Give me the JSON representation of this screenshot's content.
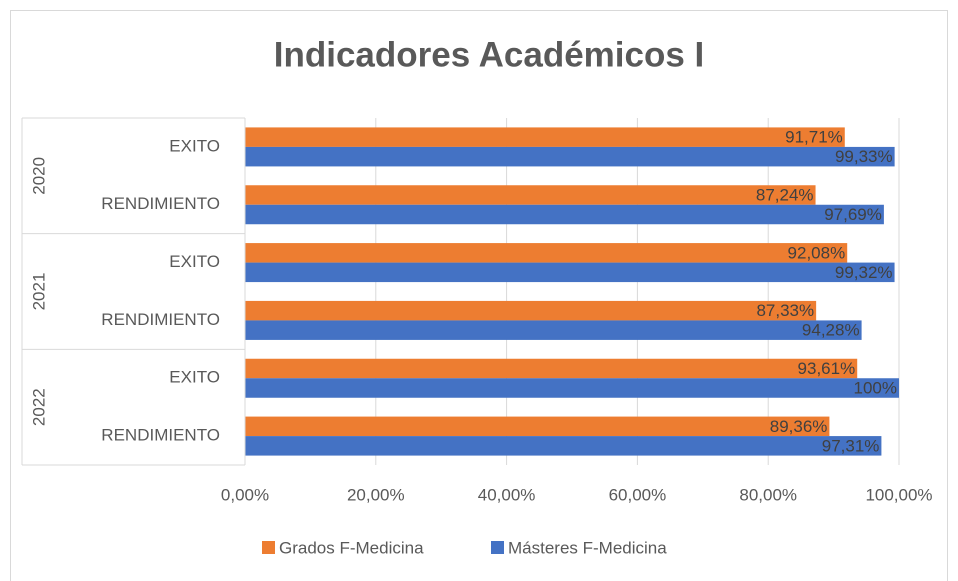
{
  "chart_data": {
    "type": "bar",
    "orientation": "horizontal",
    "title": "Indicadores Académicos I",
    "groups": [
      "2020",
      "2021",
      "2022"
    ],
    "categories": [
      "EXITO",
      "RENDIMIENTO",
      "EXITO",
      "RENDIMIENTO",
      "EXITO",
      "RENDIMIENTO"
    ],
    "series": [
      {
        "name": "Grados F-Medicina",
        "color": "#ED7D31",
        "values": [
          91.71,
          87.24,
          92.08,
          87.33,
          93.61,
          89.36
        ],
        "value_labels": [
          "91,71%",
          "87,24%",
          "92,08%",
          "87,33%",
          "93,61%",
          "89,36%"
        ]
      },
      {
        "name": "Másteres F-Medicina",
        "color": "#4472C4",
        "values": [
          99.33,
          97.69,
          99.32,
          94.28,
          100,
          97.31
        ],
        "value_labels": [
          "99,33%",
          "97,69%",
          "99,32%",
          "94,28%",
          "100%",
          "97,31%"
        ]
      }
    ],
    "xlim": [
      0,
      100
    ],
    "xticks": [
      {
        "value": 0,
        "label": "0,00%"
      },
      {
        "value": 20,
        "label": "20,00%"
      },
      {
        "value": 40,
        "label": "40,00%"
      },
      {
        "value": 60,
        "label": "60,00%"
      },
      {
        "value": 80,
        "label": "80,00%"
      },
      {
        "value": 100,
        "label": "100,00%"
      }
    ],
    "grid": true,
    "legend": "bottom"
  }
}
